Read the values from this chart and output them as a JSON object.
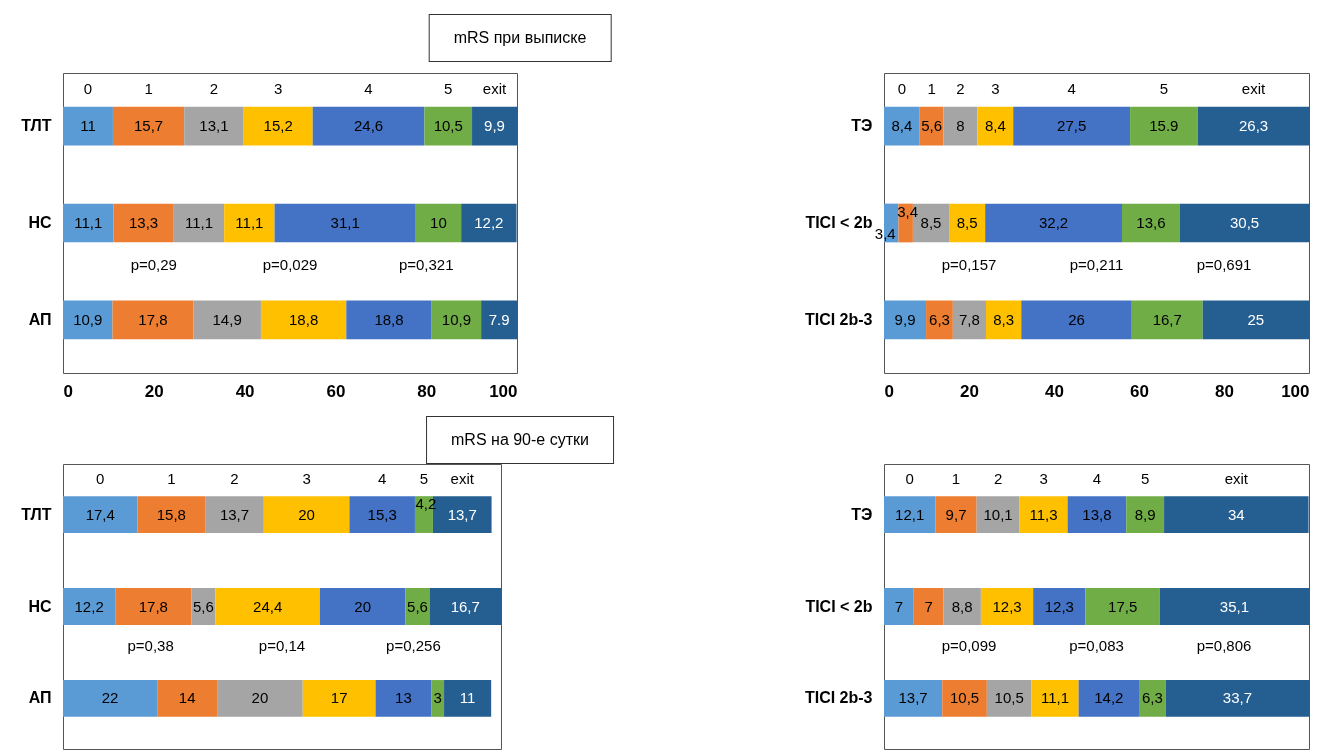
{
  "chart_data": [
    {
      "type": "bar",
      "title": "mRS при выписке",
      "orientation": "horizontal",
      "stacked": true,
      "categories": [
        "ТЛТ",
        "НС",
        "АП"
      ],
      "xlim": [
        0,
        100
      ],
      "xticks": [
        0,
        20,
        40,
        60,
        80,
        100
      ],
      "annotations": [
        "p=0,29",
        "p=0,029",
        "p=0,321"
      ],
      "series": [
        {
          "name": "0",
          "color": "#5b9bd5",
          "values": [
            11,
            11.1,
            10.9
          ],
          "value_labels": [
            "11",
            "11,1",
            "10,9"
          ]
        },
        {
          "name": "1",
          "color": "#ed7d31",
          "values": [
            15.7,
            13.3,
            17.8
          ],
          "value_labels": [
            "15,7",
            "13,3",
            "17,8"
          ]
        },
        {
          "name": "2",
          "color": "#a5a5a5",
          "values": [
            13.1,
            11.1,
            14.9
          ],
          "value_labels": [
            "13,1",
            "11,1",
            "14,9"
          ]
        },
        {
          "name": "3",
          "color": "#ffc000",
          "values": [
            15.2,
            11.1,
            18.8
          ],
          "value_labels": [
            "15,2",
            "11,1",
            "18,8"
          ]
        },
        {
          "name": "4",
          "color": "#4472c4",
          "values": [
            24.6,
            31.1,
            18.8
          ],
          "value_labels": [
            "24,6",
            "31,1",
            "18,8"
          ]
        },
        {
          "name": "5",
          "color": "#70ad47",
          "values": [
            10.5,
            10,
            10.9
          ],
          "value_labels": [
            "10,5",
            "10",
            "10,9"
          ]
        },
        {
          "name": "exit",
          "color": "#255e91",
          "values": [
            9.9,
            12.2,
            7.9
          ],
          "value_labels": [
            "9,9",
            "12,2",
            "7.9"
          ]
        }
      ]
    },
    {
      "type": "bar",
      "orientation": "horizontal",
      "stacked": true,
      "categories": [
        "ТЭ",
        "TICI < 2b",
        "TICI 2b-3"
      ],
      "xlim": [
        0,
        100
      ],
      "xticks": [
        0,
        20,
        40,
        60,
        80,
        100
      ],
      "annotations": [
        "p=0,157",
        "p=0,211",
        "p=0,691"
      ],
      "series": [
        {
          "name": "0",
          "color": "#5b9bd5",
          "values": [
            8.4,
            3.4,
            9.9
          ],
          "value_labels": [
            "8,4",
            "3,4",
            "9,9"
          ]
        },
        {
          "name": "1",
          "color": "#ed7d31",
          "values": [
            5.6,
            3.4,
            6.3
          ],
          "value_labels": [
            "5,6",
            "3,4",
            "6,3"
          ]
        },
        {
          "name": "2",
          "color": "#a5a5a5",
          "values": [
            8,
            8.5,
            7.8
          ],
          "value_labels": [
            "8",
            "8,5",
            "7,8"
          ]
        },
        {
          "name": "3",
          "color": "#ffc000",
          "values": [
            8.4,
            8.5,
            8.3
          ],
          "value_labels": [
            "8,4",
            "8,5",
            "8,3"
          ]
        },
        {
          "name": "4",
          "color": "#4472c4",
          "values": [
            27.5,
            32.2,
            26
          ],
          "value_labels": [
            "27,5",
            "32,2",
            "26"
          ]
        },
        {
          "name": "5",
          "color": "#70ad47",
          "values": [
            15.9,
            13.6,
            16.7
          ],
          "value_labels": [
            "15.9",
            "13,6",
            "16,7"
          ]
        },
        {
          "name": "exit",
          "color": "#255e91",
          "values": [
            26.3,
            30.5,
            25
          ],
          "value_labels": [
            "26,3",
            "30,5",
            "25"
          ]
        }
      ]
    },
    {
      "type": "bar",
      "title": "mRS на 90-е сутки",
      "orientation": "horizontal",
      "stacked": true,
      "categories": [
        "ТЛТ",
        "НС",
        "АП"
      ],
      "tick_labels": "y",
      "annotations": [
        "p=0,38",
        "p=0,14",
        "p=0,256"
      ],
      "series": [
        {
          "name": "0",
          "color": "#5b9bd5",
          "values": [
            17.4,
            12.2,
            22
          ],
          "value_labels": [
            "17,4",
            "12,2",
            "22"
          ]
        },
        {
          "name": "1",
          "color": "#ed7d31",
          "values": [
            15.8,
            17.8,
            14
          ],
          "value_labels": [
            "15,8",
            "17,8",
            "14"
          ]
        },
        {
          "name": "2",
          "color": "#a5a5a5",
          "values": [
            13.7,
            5.6,
            20
          ],
          "value_labels": [
            "13,7",
            "5,6",
            "20"
          ]
        },
        {
          "name": "3",
          "color": "#ffc000",
          "values": [
            20,
            24.4,
            17
          ],
          "value_labels": [
            "20",
            "24,4",
            "17"
          ]
        },
        {
          "name": "4",
          "color": "#4472c4",
          "values": [
            15.3,
            20,
            13
          ],
          "value_labels": [
            "15,3",
            "20",
            "13"
          ]
        },
        {
          "name": "5",
          "color": "#70ad47",
          "values": [
            4.2,
            5.6,
            3
          ],
          "value_labels": [
            "4,2",
            "5,6",
            "3"
          ]
        },
        {
          "name": "exit",
          "color": "#255e91",
          "values": [
            13.7,
            16.7,
            11
          ],
          "value_labels": [
            "13,7",
            "16,7",
            "11"
          ]
        }
      ]
    },
    {
      "type": "bar",
      "orientation": "horizontal",
      "stacked": true,
      "categories": [
        "ТЭ",
        "TICI < 2b",
        "TICI 2b-3"
      ],
      "tick_labels": "y",
      "annotations": [
        "p=0,099",
        "p=0,083",
        "p=0,806"
      ],
      "series": [
        {
          "name": "0",
          "color": "#5b9bd5",
          "values": [
            12.1,
            7,
            13.7
          ],
          "value_labels": [
            "12,1",
            "7",
            "13,7"
          ]
        },
        {
          "name": "1",
          "color": "#ed7d31",
          "values": [
            9.7,
            7,
            10.5
          ],
          "value_labels": [
            "9,7",
            "7",
            "10,5"
          ]
        },
        {
          "name": "2",
          "color": "#a5a5a5",
          "values": [
            10.1,
            8.8,
            10.5
          ],
          "value_labels": [
            "10,1",
            "8,8",
            "10,5"
          ]
        },
        {
          "name": "3",
          "color": "#ffc000",
          "values": [
            11.3,
            12.3,
            11.1
          ],
          "value_labels": [
            "11,3",
            "12,3",
            "11,1"
          ]
        },
        {
          "name": "4",
          "color": "#4472c4",
          "values": [
            13.8,
            12.3,
            14.2
          ],
          "value_labels": [
            "13,8",
            "12,3",
            "14,2"
          ]
        },
        {
          "name": "5",
          "color": "#70ad47",
          "values": [
            8.9,
            17.5,
            6.3
          ],
          "value_labels": [
            "8,9",
            "17,5",
            "6,3"
          ]
        },
        {
          "name": "exit",
          "color": "#255e91",
          "values": [
            34,
            35.1,
            33.7
          ],
          "value_labels": [
            "34",
            "35,1",
            "33,7"
          ]
        }
      ]
    }
  ]
}
